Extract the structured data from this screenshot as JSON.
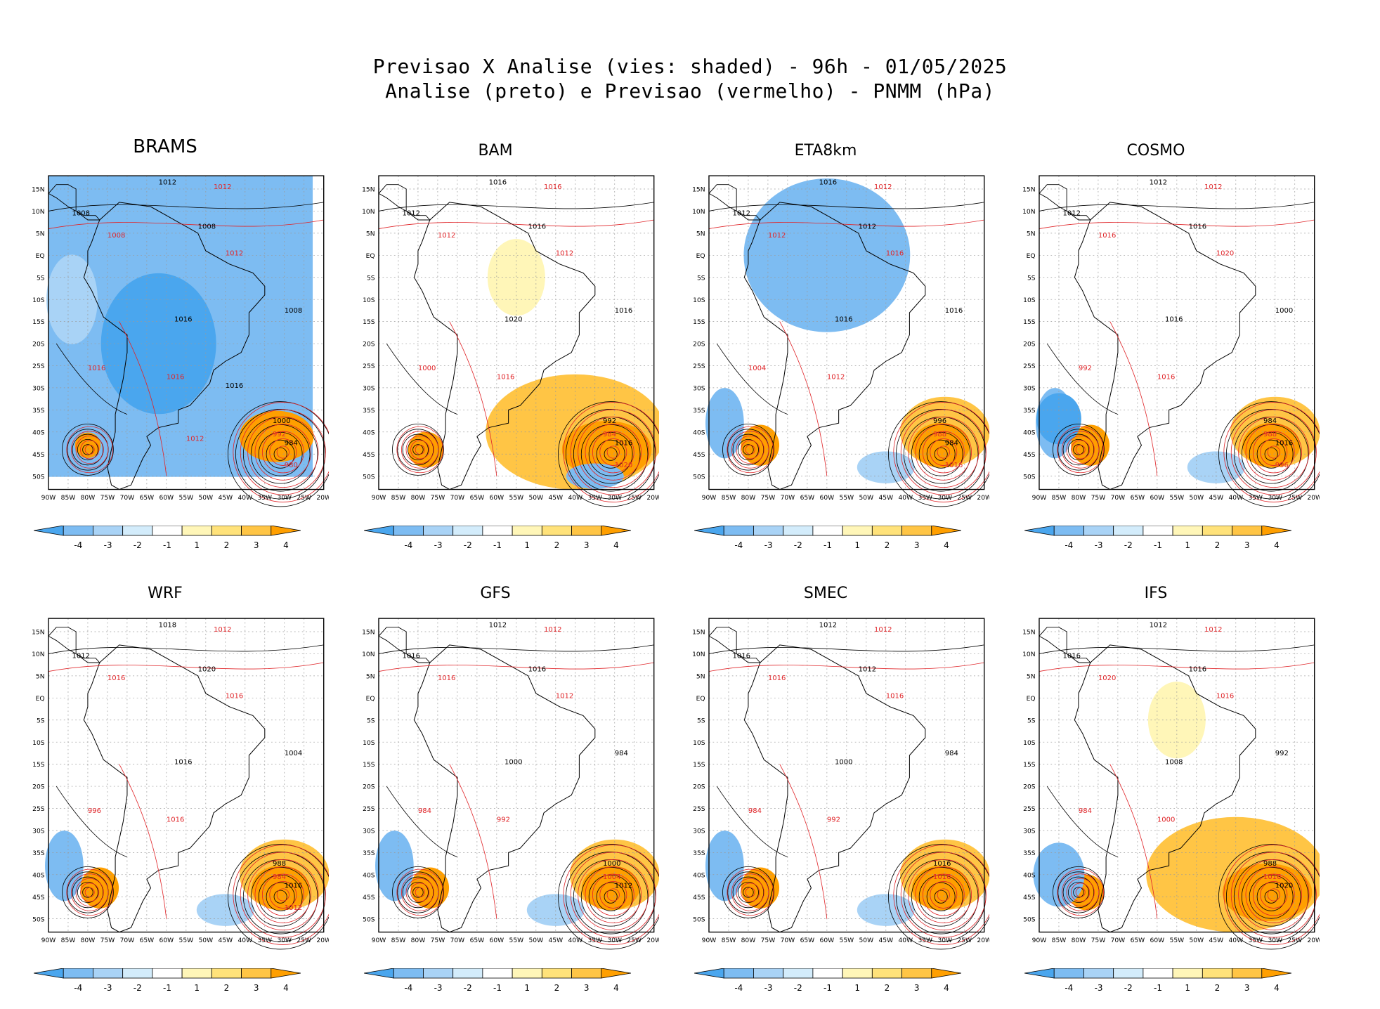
{
  "header": {
    "line1": "Previsao X Analise (vies: shaded) - 96h - 01/05/2025",
    "line2": "Analise (preto) e Previsao (vermelho) - PNMM (hPa)"
  },
  "axes": {
    "lat_labels": [
      "15N",
      "10N",
      "5N",
      "EQ",
      "5S",
      "10S",
      "15S",
      "20S",
      "25S",
      "30S",
      "35S",
      "40S",
      "45S",
      "50S"
    ],
    "lon_labels": [
      "90W",
      "85W",
      "80W",
      "75W",
      "70W",
      "65W",
      "60W",
      "55W",
      "50W",
      "45W",
      "40W",
      "35W",
      "30W",
      "25W",
      "20W"
    ]
  },
  "colorbar": {
    "ticks": [
      "-4",
      "-3",
      "-2",
      "-1",
      "1",
      "2",
      "3",
      "4"
    ],
    "colors": [
      "#4aa6ee",
      "#7dbcf2",
      "#a9d3f6",
      "#d3ecfb",
      "#ffffff",
      "#fff6b8",
      "#ffe27a",
      "#ffc545",
      "#ff9f00"
    ]
  },
  "panels": [
    {
      "name": "BRAMS",
      "bias": "neg",
      "labels": [
        "1012",
        "1012",
        "1008",
        "1008",
        "1008",
        "1012",
        "1016",
        "1016",
        "1008",
        "1016",
        "1000",
        "992",
        "984",
        "980",
        "1016",
        "1012"
      ]
    },
    {
      "name": "BAM",
      "bias": "pos",
      "labels": [
        "1016",
        "1016",
        "1012",
        "1012",
        "1016",
        "1012",
        "1020",
        "1016",
        "1016",
        "1000",
        "992",
        "984",
        "1016",
        "1020"
      ]
    },
    {
      "name": "ETA8km",
      "bias": "mixed",
      "labels": [
        "1016",
        "1012",
        "1012",
        "1012",
        "1012",
        "1016",
        "1016",
        "1012",
        "1016",
        "1004",
        "996",
        "988",
        "984",
        "1016"
      ]
    },
    {
      "name": "COSMO",
      "bias": "mixed",
      "labels": [
        "1012",
        "1012",
        "1012",
        "1016",
        "1016",
        "1020",
        "1016",
        "1016",
        "1000",
        "992",
        "984",
        "988",
        "1016",
        "996"
      ]
    },
    {
      "name": "WRF",
      "bias": "mixed",
      "labels": [
        "1018",
        "1012",
        "1012",
        "1016",
        "1020",
        "1016",
        "1016",
        "1016",
        "1004",
        "996",
        "988",
        "984",
        "1016",
        "1012"
      ]
    },
    {
      "name": "GFS",
      "bias": "mixed",
      "labels": [
        "1012",
        "1012",
        "1016",
        "1016",
        "1016",
        "1012",
        "1000",
        "992",
        "984",
        "984",
        "1000",
        "1004",
        "1012"
      ]
    },
    {
      "name": "SMEC",
      "bias": "mixed",
      "labels": [
        "1012",
        "1012",
        "1016",
        "1016",
        "1012",
        "1016",
        "1000",
        "992",
        "984",
        "984",
        "1016",
        "1016"
      ]
    },
    {
      "name": "IFS",
      "bias": "pos",
      "labels": [
        "1012",
        "1012",
        "1016",
        "1020",
        "1016",
        "1016",
        "1008",
        "1000",
        "992",
        "984",
        "988",
        "1016",
        "1020"
      ]
    }
  ]
}
